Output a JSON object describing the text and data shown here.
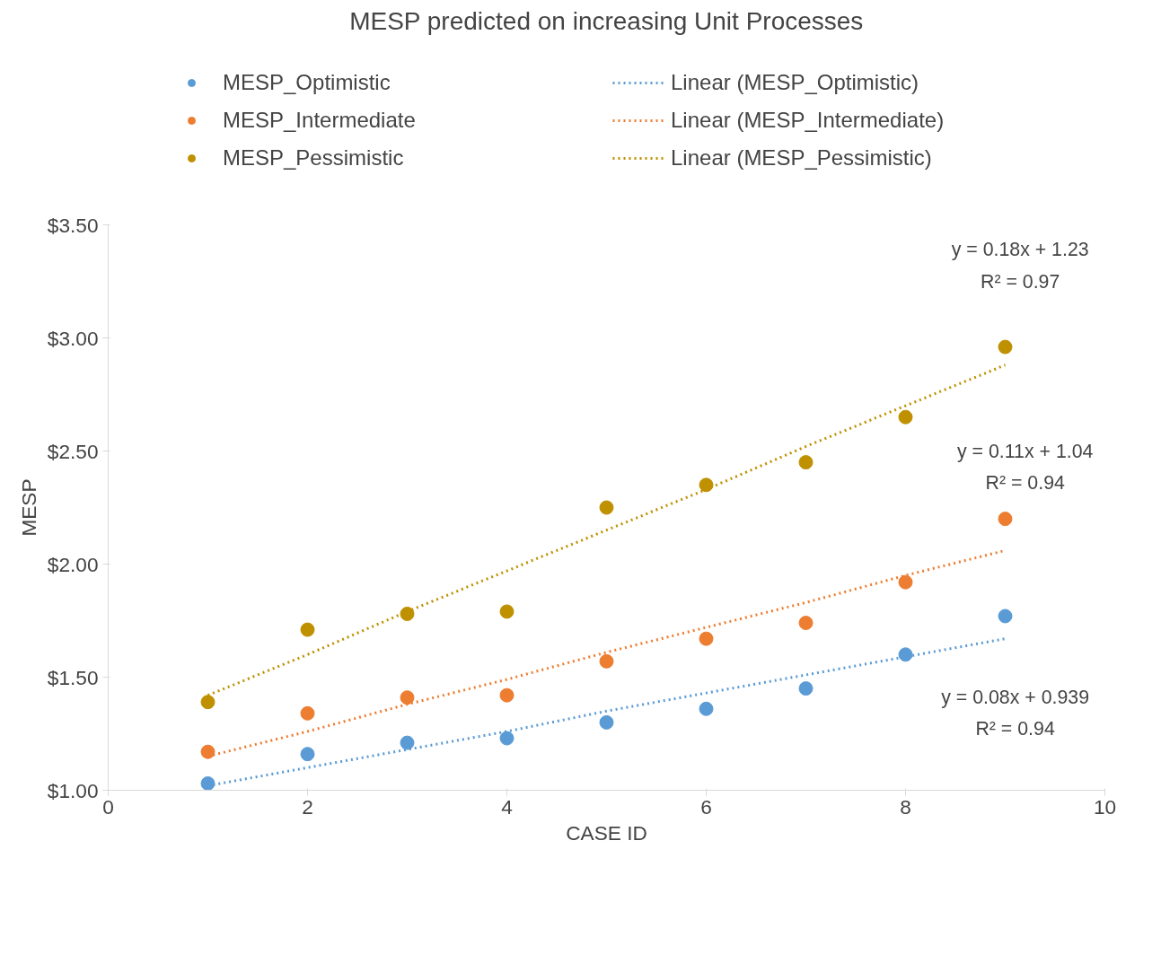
{
  "chart_data": {
    "type": "scatter",
    "title": "MESP predicted on increasing Unit Processes",
    "xlabel": "CASE ID",
    "ylabel": "MESP",
    "x": [
      1,
      2,
      3,
      4,
      5,
      6,
      7,
      8,
      9
    ],
    "series": [
      {
        "name": "MESP_Optimistic",
        "color": "#5b9bd5",
        "marker": "circle",
        "values": [
          1.03,
          1.16,
          1.21,
          1.23,
          1.3,
          1.36,
          1.45,
          1.6,
          1.77
        ]
      },
      {
        "name": "MESP_Intermediate",
        "color": "#ed7d31",
        "marker": "circle",
        "values": [
          1.17,
          1.34,
          1.41,
          1.42,
          1.57,
          1.67,
          1.74,
          1.92,
          2.2
        ]
      },
      {
        "name": "MESP_Pessimistic",
        "color": "#bf9000",
        "marker": "circle",
        "values": [
          1.39,
          1.71,
          1.78,
          1.79,
          2.25,
          2.35,
          2.45,
          2.65,
          2.96
        ]
      },
      {
        "name": "Linear (MESP_Optimistic)",
        "type": "line",
        "line_style": "dotted",
        "color": "#5b9bd5",
        "values": [
          1.02,
          1.1,
          1.18,
          1.26,
          1.35,
          1.43,
          1.51,
          1.59,
          1.67
        ]
      },
      {
        "name": "Linear (MESP_Intermediate)",
        "type": "line",
        "line_style": "dotted",
        "color": "#ed7d31",
        "values": [
          1.15,
          1.26,
          1.38,
          1.49,
          1.61,
          1.72,
          1.83,
          1.95,
          2.06
        ]
      },
      {
        "name": "Linear (MESP_Pessimistic)",
        "type": "line",
        "line_style": "dotted",
        "color": "#bf9000",
        "values": [
          1.42,
          1.6,
          1.79,
          1.97,
          2.15,
          2.33,
          2.52,
          2.7,
          2.88
        ]
      }
    ],
    "legend": "top",
    "grid": false,
    "xlim": [
      0,
      10
    ],
    "xticks": [
      0,
      2,
      4,
      6,
      8,
      10
    ],
    "ylim": [
      1.0,
      3.5
    ],
    "yticks": [
      {
        "value": 1.0,
        "label": "$1.00"
      },
      {
        "value": 1.5,
        "label": "$1.50"
      },
      {
        "value": 2.0,
        "label": "$2.00"
      },
      {
        "value": 2.5,
        "label": "$2.50"
      },
      {
        "value": 3.0,
        "label": "$3.00"
      },
      {
        "value": 3.5,
        "label": "$3.50"
      }
    ],
    "annotations": [
      "y = 0.18x + 1.23",
      "R² = 0.97",
      "y = 0.11x + 1.04",
      "R² = 0.94",
      "y = 0.08x + 0.939",
      "R² = 0.94"
    ]
  }
}
